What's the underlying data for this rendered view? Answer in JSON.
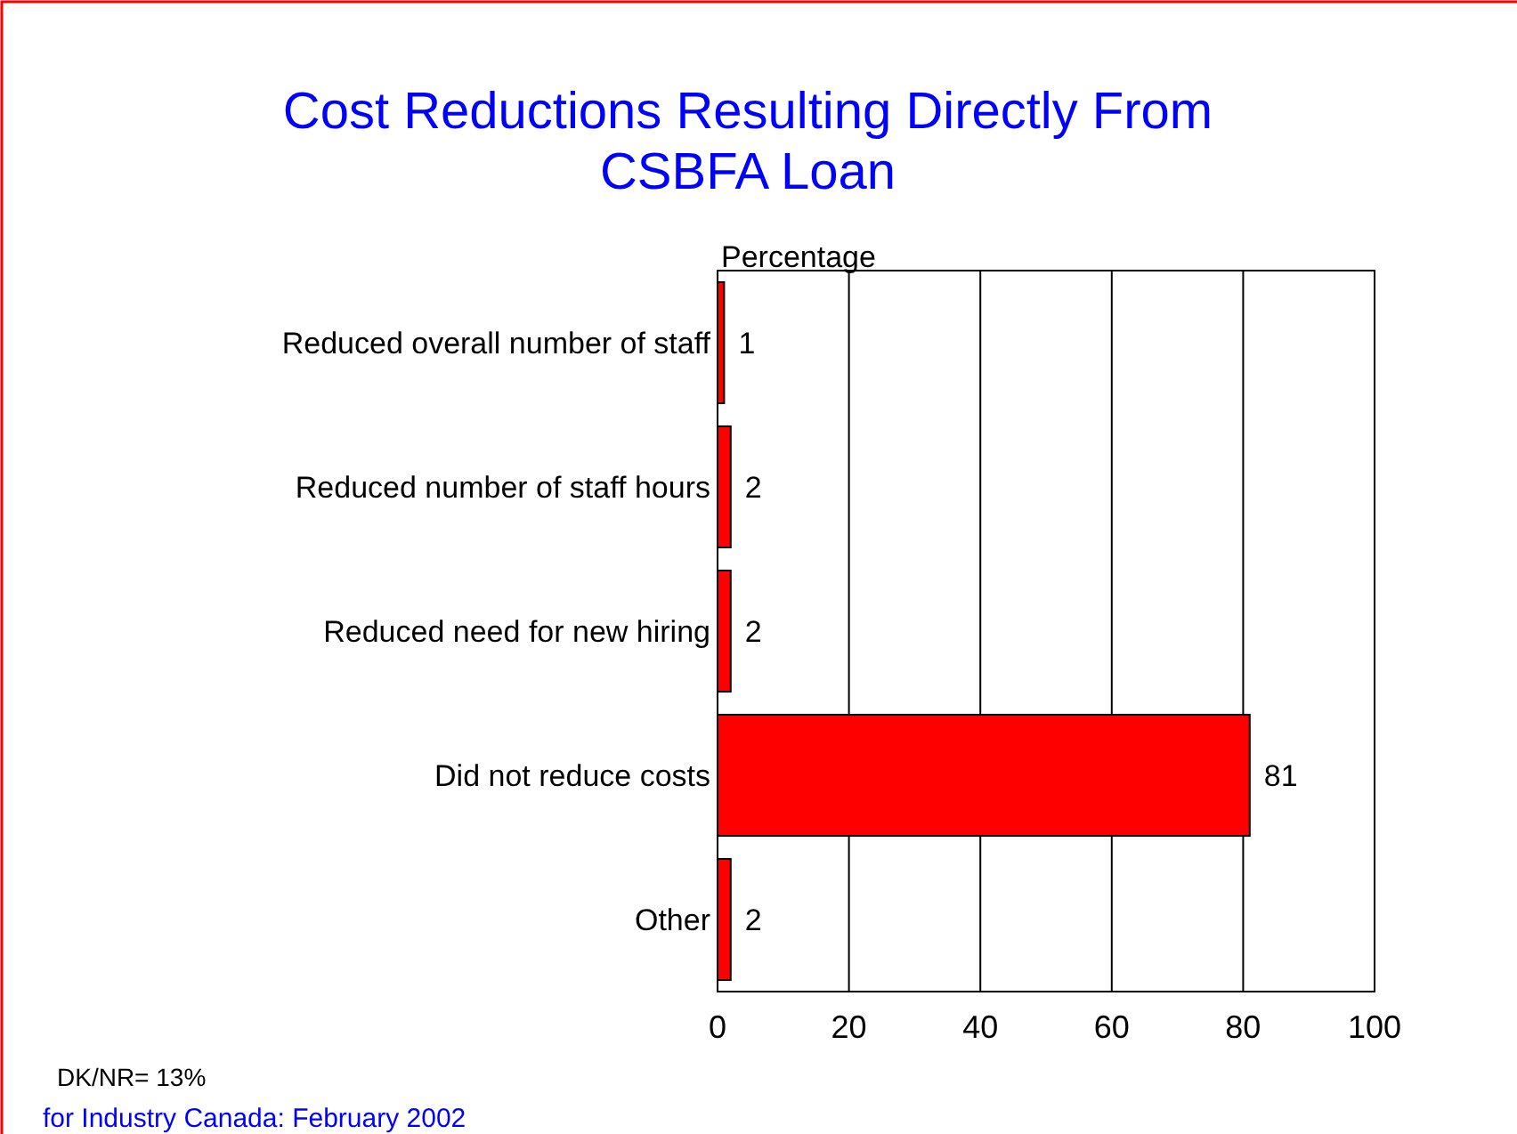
{
  "chart_data": {
    "type": "bar",
    "orientation": "horizontal",
    "title": "Cost Reductions Resulting Directly From CSBFA Loan",
    "xlabel": "Percentage",
    "categories": [
      "Reduced overall number of staff",
      "Reduced number of staff hours",
      "Reduced need for new hiring",
      "Did not reduce costs",
      "Other"
    ],
    "values": [
      1,
      2,
      2,
      81,
      2
    ],
    "color": "#ff0000",
    "xlim": [
      0,
      100
    ],
    "xticks": [
      0,
      20,
      40,
      60,
      80,
      100
    ],
    "grid": "x",
    "data_labels": true,
    "annotations": [
      "DK/NR= 13%",
      "for Industry Canada: February 2002"
    ]
  }
}
